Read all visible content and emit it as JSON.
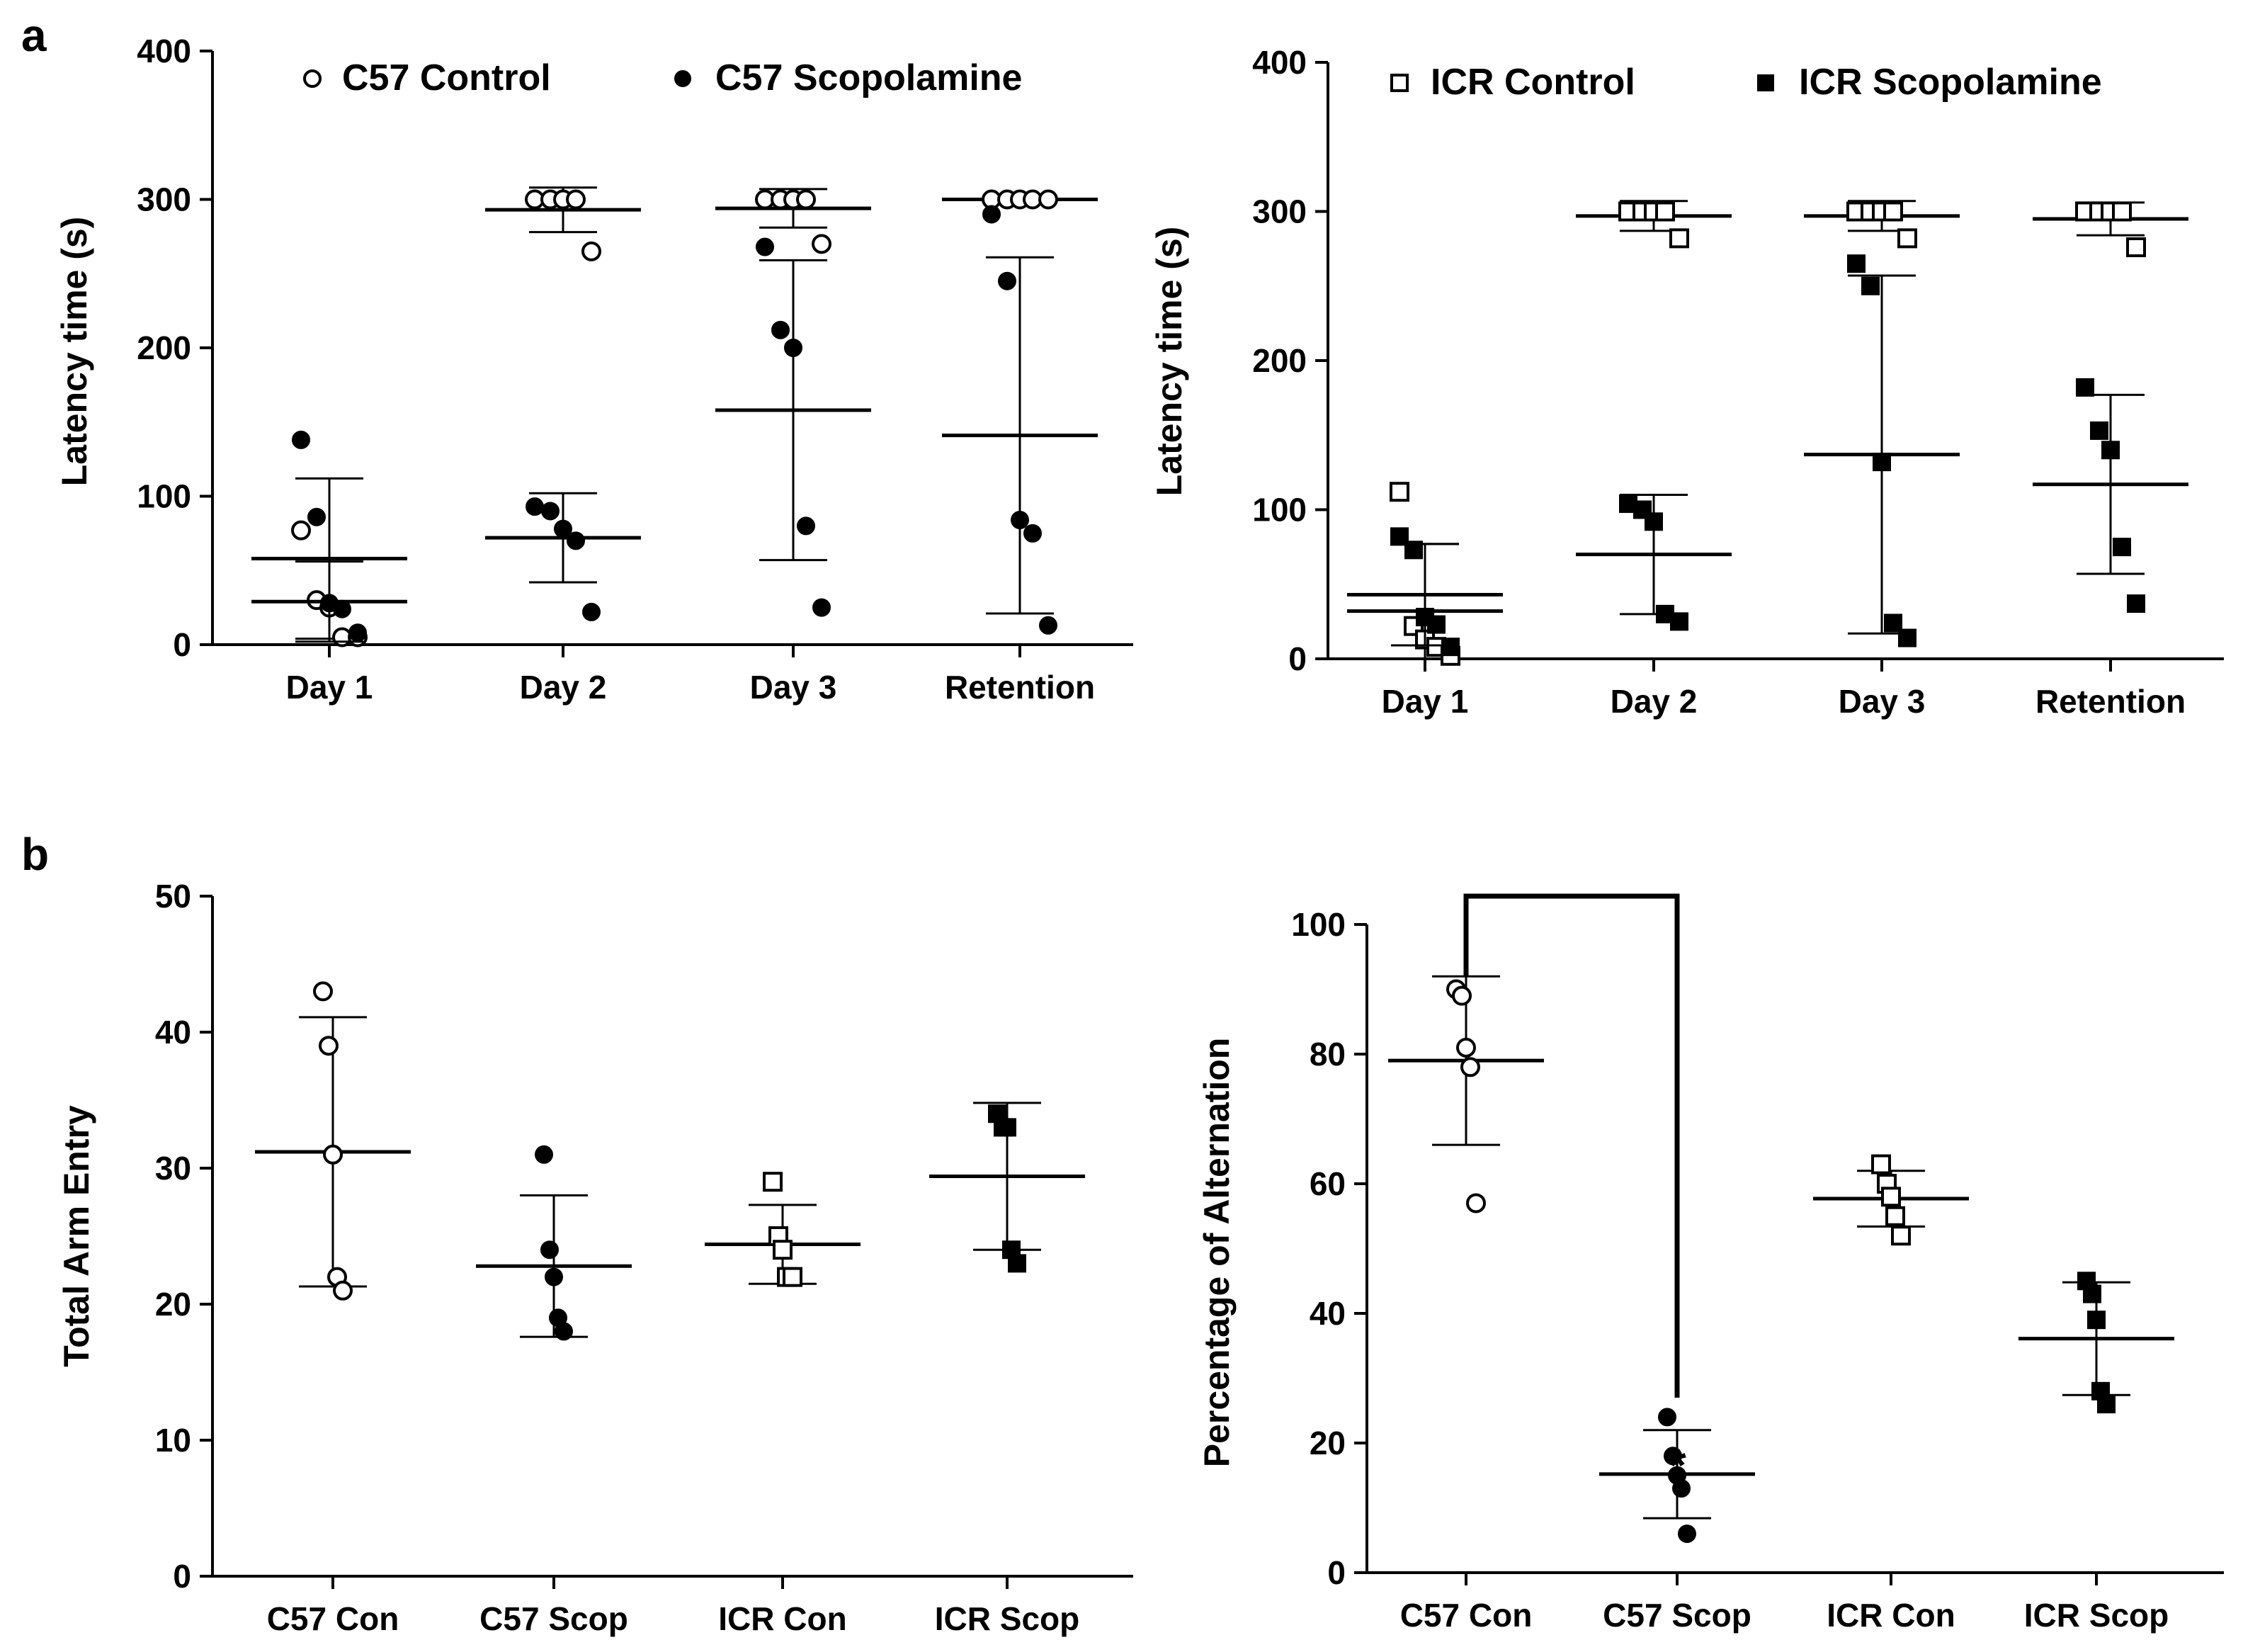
{
  "panel_labels": [
    "a",
    "b"
  ],
  "chart_data": [
    {
      "id": "a-left",
      "type": "scatter",
      "title": "",
      "xlabel": "",
      "ylabel": "Latency time (s)",
      "categories": [
        "Day 1",
        "Day 2",
        "Day 3",
        "Retention"
      ],
      "ylim": [
        0,
        400
      ],
      "yticks": [
        0,
        100,
        200,
        300,
        400
      ],
      "legend": {
        "placement": "top",
        "entries": [
          "C57 Control",
          "C57 Scopolamine"
        ]
      },
      "series": [
        {
          "name": "C57 Control",
          "marker": "circle",
          "filled": false,
          "points": [
            [
              0,
              77
            ],
            [
              0,
              30
            ],
            [
              0,
              25
            ],
            [
              0,
              5
            ],
            [
              0,
              5
            ],
            [
              1,
              300
            ],
            [
              1,
              300
            ],
            [
              1,
              300
            ],
            [
              1,
              300
            ],
            [
              1,
              265
            ],
            [
              2,
              300
            ],
            [
              2,
              300
            ],
            [
              2,
              300
            ],
            [
              2,
              300
            ],
            [
              2,
              270
            ],
            [
              3,
              300
            ],
            [
              3,
              300
            ],
            [
              3,
              300
            ],
            [
              3,
              300
            ],
            [
              3,
              300
            ]
          ],
          "mean": [
            58,
            293,
            294,
            300
          ],
          "sd": [
            54,
            15,
            13,
            1
          ]
        },
        {
          "name": "C57 Scopolamine",
          "marker": "circle",
          "filled": true,
          "points": [
            [
              0,
              138
            ],
            [
              0,
              86
            ],
            [
              0,
              28
            ],
            [
              0,
              24
            ],
            [
              0,
              8
            ],
            [
              1,
              93
            ],
            [
              1,
              90
            ],
            [
              1,
              78
            ],
            [
              1,
              70
            ],
            [
              1,
              22
            ],
            [
              2,
              268
            ],
            [
              2,
              212
            ],
            [
              2,
              200
            ],
            [
              2,
              80
            ],
            [
              2,
              25
            ],
            [
              3,
              290
            ],
            [
              3,
              245
            ],
            [
              3,
              84
            ],
            [
              3,
              75
            ],
            [
              3,
              13
            ]
          ],
          "mean": [
            29,
            72,
            158,
            141
          ],
          "sd": [
            27,
            30,
            101,
            120
          ]
        }
      ]
    },
    {
      "id": "a-right",
      "type": "scatter",
      "title": "",
      "xlabel": "",
      "ylabel": "Latency time (s)",
      "categories": [
        "Day 1",
        "Day 2",
        "Day 3",
        "Retention"
      ],
      "ylim": [
        0,
        400
      ],
      "yticks": [
        0,
        100,
        200,
        300,
        400
      ],
      "legend": {
        "placement": "top",
        "entries": [
          "ICR Control",
          "ICR Scopolamine"
        ]
      },
      "series": [
        {
          "name": "ICR Control",
          "marker": "square",
          "filled": false,
          "points": [
            [
              0,
              112
            ],
            [
              0,
              22
            ],
            [
              0,
              13
            ],
            [
              0,
              8
            ],
            [
              0,
              2
            ],
            [
              1,
              300
            ],
            [
              1,
              300
            ],
            [
              1,
              300
            ],
            [
              1,
              300
            ],
            [
              1,
              282
            ],
            [
              2,
              300
            ],
            [
              2,
              300
            ],
            [
              2,
              300
            ],
            [
              2,
              300
            ],
            [
              2,
              282
            ],
            [
              3,
              300
            ],
            [
              3,
              300
            ],
            [
              3,
              300
            ],
            [
              3,
              300
            ],
            [
              3,
              276
            ]
          ],
          "mean": [
            32,
            297,
            297,
            295
          ],
          "sd": [
            45,
            10,
            10,
            11
          ]
        },
        {
          "name": "ICR Scopolamine",
          "marker": "square",
          "filled": true,
          "points": [
            [
              0,
              82
            ],
            [
              0,
              73
            ],
            [
              0,
              28
            ],
            [
              0,
              23
            ],
            [
              0,
              8
            ],
            [
              1,
              104
            ],
            [
              1,
              100
            ],
            [
              1,
              92
            ],
            [
              1,
              30
            ],
            [
              1,
              25
            ],
            [
              2,
              265
            ],
            [
              2,
              250
            ],
            [
              2,
              132
            ],
            [
              2,
              24
            ],
            [
              2,
              14
            ],
            [
              3,
              182
            ],
            [
              3,
              153
            ],
            [
              3,
              140
            ],
            [
              3,
              75
            ],
            [
              3,
              37
            ]
          ],
          "mean": [
            43,
            70,
            137,
            117
          ],
          "sd": [
            34,
            40,
            120,
            60
          ]
        }
      ]
    },
    {
      "id": "b-left",
      "type": "scatter",
      "title": "",
      "xlabel": "",
      "ylabel": "Total Arm Entry",
      "categories": [
        "C57 Con",
        "C57 Scop",
        "ICR Con",
        "ICR Scop"
      ],
      "ylim": [
        0,
        50
      ],
      "yticks": [
        0,
        10,
        20,
        30,
        40,
        50
      ],
      "series": [
        {
          "name": "C57 Con",
          "marker": "circle",
          "filled": false,
          "points": [
            [
              0,
              43
            ],
            [
              0,
              39
            ],
            [
              0,
              31
            ],
            [
              0,
              22
            ],
            [
              0,
              21
            ]
          ],
          "mean": [
            31.2
          ],
          "sd": [
            9.9
          ]
        },
        {
          "name": "C57 Scop",
          "marker": "circle",
          "filled": true,
          "points": [
            [
              1,
              31
            ],
            [
              1,
              24
            ],
            [
              1,
              22
            ],
            [
              1,
              19
            ],
            [
              1,
              18
            ]
          ],
          "mean": [
            22.8
          ],
          "sd": [
            5.2
          ]
        },
        {
          "name": "ICR Con",
          "marker": "square",
          "filled": false,
          "points": [
            [
              2,
              29
            ],
            [
              2,
              25
            ],
            [
              2,
              24
            ],
            [
              2,
              22
            ],
            [
              2,
              22
            ]
          ],
          "mean": [
            24.4
          ],
          "sd": [
            2.9
          ]
        },
        {
          "name": "ICR Scop",
          "marker": "square",
          "filled": true,
          "points": [
            [
              3,
              34
            ],
            [
              3,
              33
            ],
            [
              3,
              33
            ],
            [
              3,
              24
            ],
            [
              3,
              23
            ]
          ],
          "mean": [
            29.4
          ],
          "sd": [
            5.4
          ]
        }
      ]
    },
    {
      "id": "b-right",
      "type": "scatter",
      "title": "",
      "xlabel": "",
      "ylabel": "Percentage of Alternation",
      "categories": [
        "C57 Con",
        "C57 Scop",
        "ICR Con",
        "ICR Scop"
      ],
      "ylim": [
        0,
        100
      ],
      "yticks": [
        0,
        20,
        40,
        60,
        80,
        100
      ],
      "annotations": [
        {
          "text": "*",
          "between": [
            "C57 Con",
            "C57 Scop"
          ],
          "placement": "above C57 Scop"
        }
      ],
      "series": [
        {
          "name": "C57 Con",
          "marker": "circle",
          "filled": false,
          "points": [
            [
              0,
              90
            ],
            [
              0,
              89
            ],
            [
              0,
              81
            ],
            [
              0,
              78
            ],
            [
              0,
              57
            ]
          ],
          "mean": [
            79
          ],
          "sd": [
            13
          ]
        },
        {
          "name": "C57 Scop",
          "marker": "circle",
          "filled": true,
          "points": [
            [
              1,
              24
            ],
            [
              1,
              18
            ],
            [
              1,
              15
            ],
            [
              1,
              13
            ],
            [
              1,
              6
            ]
          ],
          "mean": [
            15.2
          ],
          "sd": [
            6.8
          ]
        },
        {
          "name": "ICR Con",
          "marker": "square",
          "filled": false,
          "points": [
            [
              2,
              63
            ],
            [
              2,
              60
            ],
            [
              2,
              58
            ],
            [
              2,
              55
            ],
            [
              2,
              52
            ]
          ],
          "mean": [
            57.7
          ],
          "sd": [
            4.3
          ]
        },
        {
          "name": "ICR Scop",
          "marker": "square",
          "filled": true,
          "points": [
            [
              3,
              45
            ],
            [
              3,
              43
            ],
            [
              3,
              39
            ],
            [
              3,
              28
            ],
            [
              3,
              26
            ]
          ],
          "mean": [
            36.1
          ],
          "sd": [
            8.7
          ]
        }
      ]
    }
  ]
}
